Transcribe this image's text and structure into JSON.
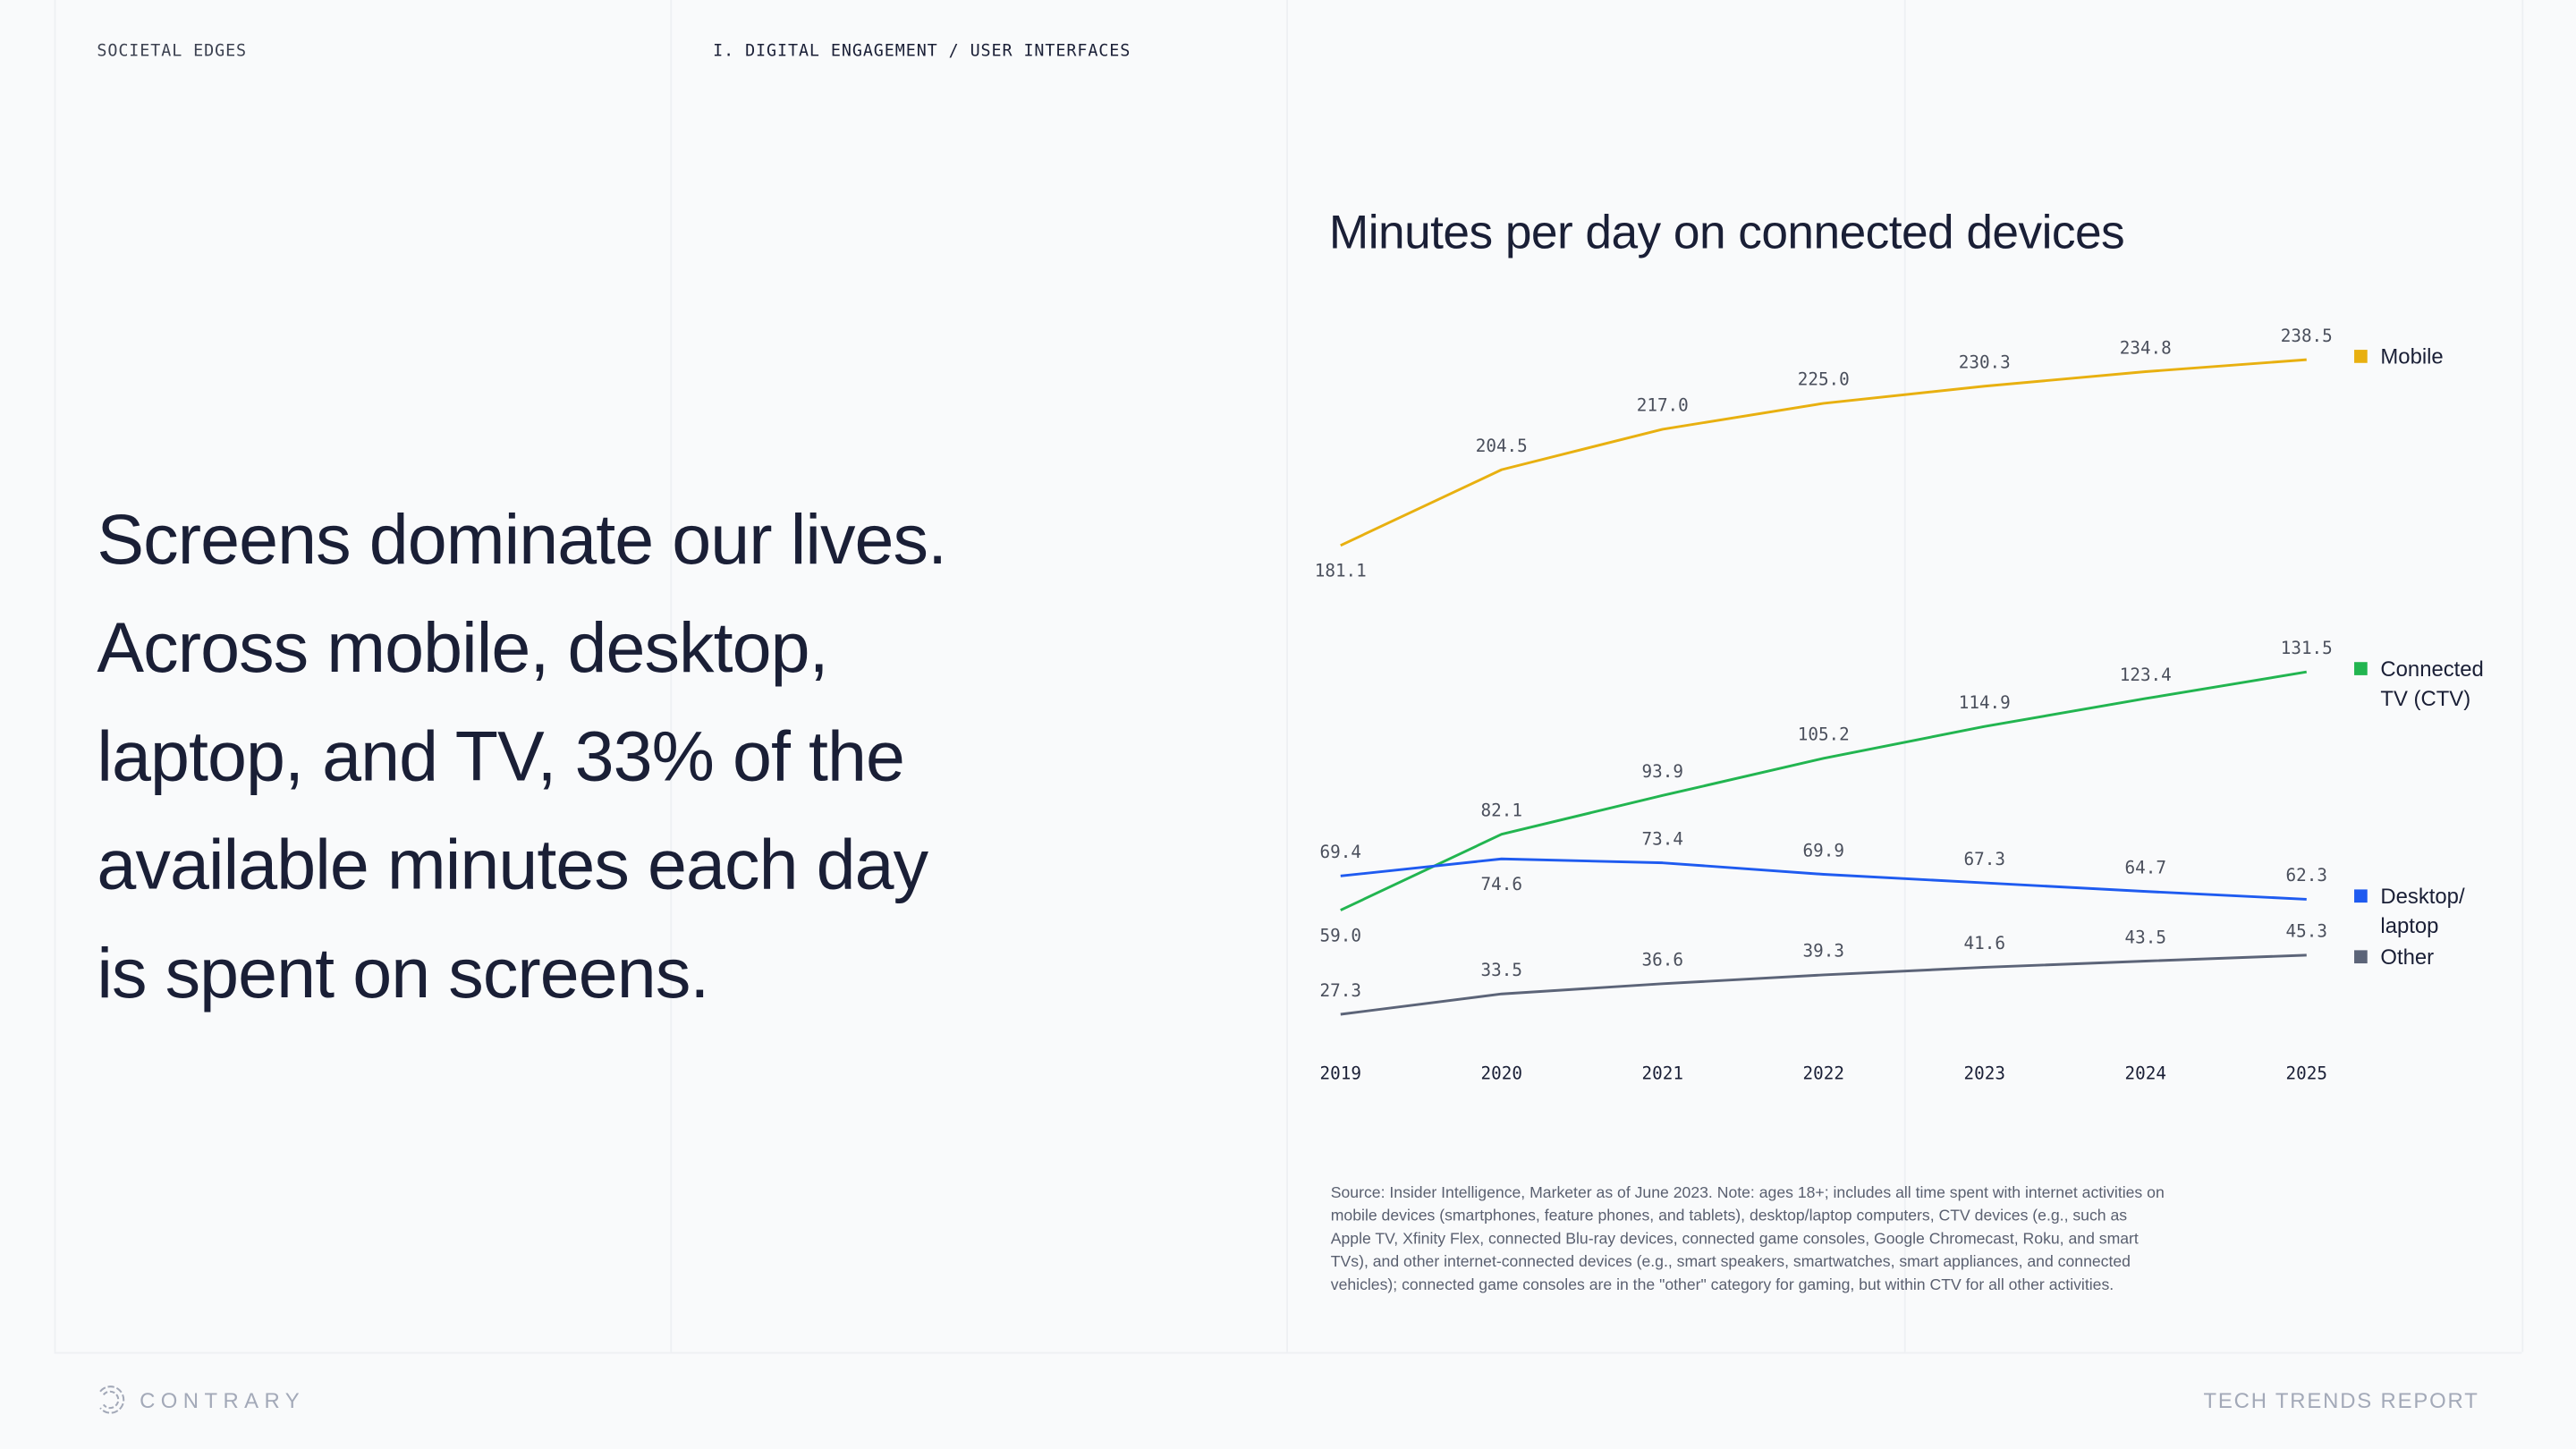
{
  "header": {
    "section": "SOCIETAL EDGES",
    "breadcrumb": "I. DIGITAL ENGAGEMENT / USER INTERFACES"
  },
  "headline": [
    "Screens dominate our lives.",
    "Across mobile, desktop,",
    "laptop, and TV, 33% of the",
    "available minutes each day",
    "is spent on screens."
  ],
  "chart_data": {
    "type": "line",
    "title": "Minutes per day on connected devices",
    "x": [
      "2019",
      "2020",
      "2021",
      "2022",
      "2023",
      "2024",
      "2025"
    ],
    "series": [
      {
        "name": "Mobile",
        "color": "#e8b010",
        "values": [
          181.1,
          204.5,
          217.0,
          225.0,
          230.3,
          234.8,
          238.5
        ]
      },
      {
        "name": "Connected TV (CTV)",
        "legend_lines": [
          "Connected",
          "TV (CTV)"
        ],
        "color": "#22b550",
        "values": [
          59.0,
          82.1,
          93.9,
          105.2,
          114.9,
          123.4,
          131.5
        ]
      },
      {
        "name": "Desktop/ laptop",
        "legend_lines": [
          "Desktop/",
          "laptop"
        ],
        "color": "#1f5bf0",
        "values": [
          69.4,
          74.6,
          73.4,
          69.9,
          67.3,
          64.7,
          62.3
        ]
      },
      {
        "name": "Other",
        "color": "#5c6478",
        "values": [
          27.3,
          33.5,
          36.6,
          39.3,
          41.6,
          43.5,
          45.3
        ]
      }
    ],
    "legend": "right",
    "grid": false,
    "y_axis_shown": false,
    "y_axis_break": "Mobile series drawn with a scale break above the other series"
  },
  "source": "Source: Insider Intelligence, Marketer as of June 2023. Note: ages 18+; includes all time spent with internet activities on mobile devices (smartphones, feature phones, and tablets), desktop/laptop computers, CTV devices (e.g., such as Apple TV, Xfinity Flex, connected Blu-ray devices, connected game consoles, Google Chromecast, Roku, and smart TVs), and other internet-connected devices (e.g., smart speakers, smartwatches, smart appliances, and connected vehicles); connected game consoles are in the \"other\" category for gaming, but within CTV for all other activities.",
  "footer": {
    "brand": "CONTRARY",
    "report": "TECH TRENDS REPORT"
  }
}
